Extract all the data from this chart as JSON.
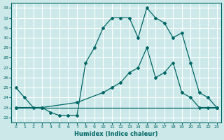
{
  "xlabel": "Humidex (Indice chaleur)",
  "xlim": [
    -0.5,
    23.5
  ],
  "ylim": [
    21.5,
    33.5
  ],
  "yticks": [
    22,
    23,
    24,
    25,
    26,
    27,
    28,
    29,
    30,
    31,
    32,
    33
  ],
  "xticks": [
    0,
    1,
    2,
    3,
    4,
    5,
    6,
    7,
    8,
    9,
    10,
    11,
    12,
    13,
    14,
    15,
    16,
    17,
    18,
    19,
    20,
    21,
    22,
    23
  ],
  "bg_color": "#cce8e8",
  "line_color": "#006666",
  "grid_color": "#ffffff",
  "line1_x": [
    0,
    1,
    2,
    3,
    4,
    5,
    6,
    7,
    8,
    9,
    10,
    11,
    12,
    13,
    14,
    15,
    16,
    17,
    18,
    19,
    20,
    21,
    22,
    23
  ],
  "line1_y": [
    25,
    24,
    23,
    23,
    22.5,
    22.2,
    22.2,
    22.2,
    27.5,
    29,
    31,
    32,
    32,
    32,
    30,
    33,
    32,
    31.5,
    30,
    30.5,
    27.5,
    24.5,
    24,
    23
  ],
  "line2_x": [
    0,
    3,
    23
  ],
  "line2_y": [
    23,
    23,
    23
  ],
  "line3_x": [
    0,
    3,
    7,
    10,
    11,
    12,
    13,
    14,
    15,
    16,
    17,
    18,
    19,
    20,
    21,
    22,
    23
  ],
  "line3_y": [
    23,
    23,
    23.5,
    24.5,
    25,
    25.5,
    26.5,
    27,
    29,
    26,
    26.5,
    27.5,
    24.5,
    24,
    23,
    23,
    23
  ]
}
